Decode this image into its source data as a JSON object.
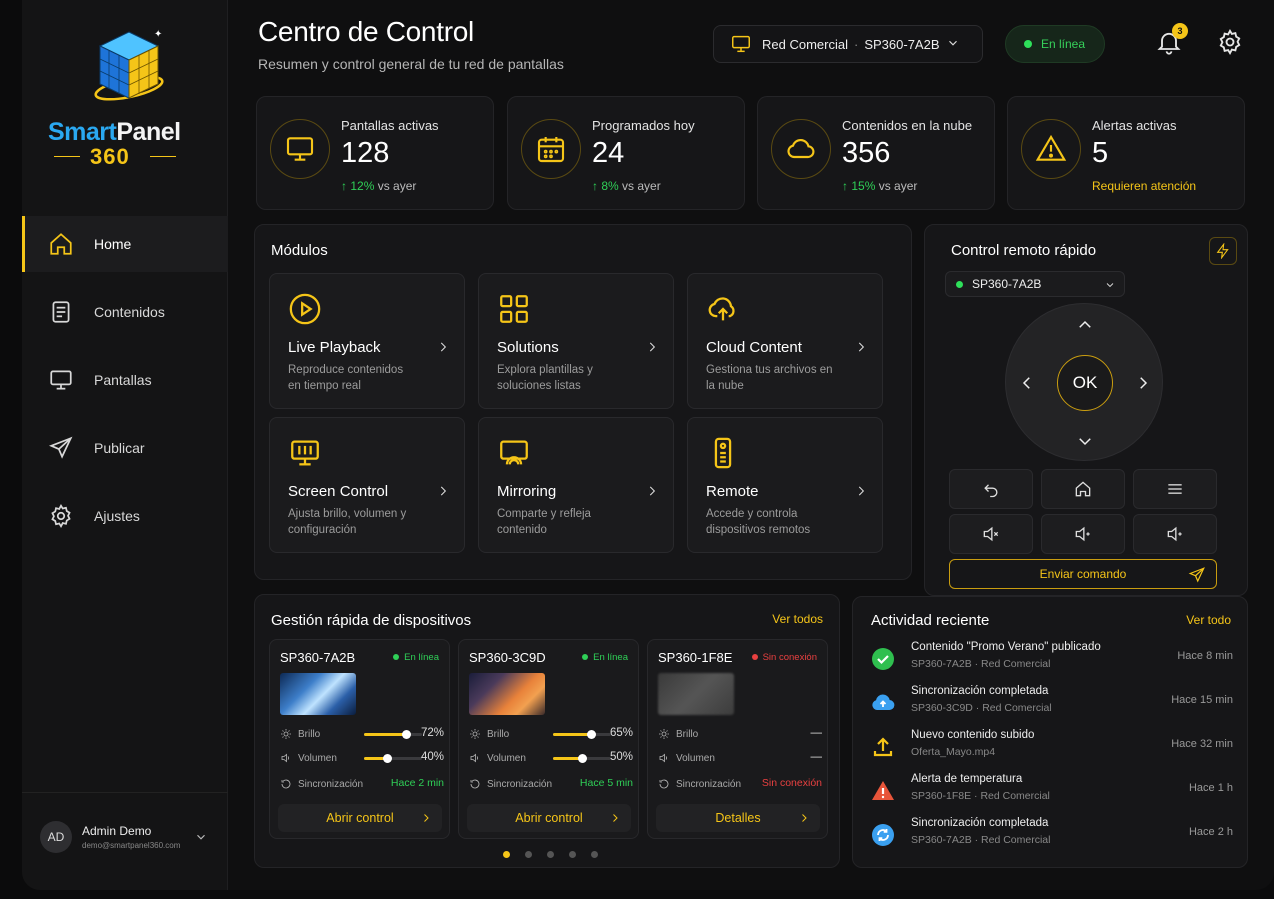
{
  "brand": {
    "name_a": "Smart",
    "name_b": "Panel",
    "name_num": "360"
  },
  "sidebar": {
    "items": [
      {
        "label": "Home",
        "icon": "home-icon",
        "active": true
      },
      {
        "label": "Contenidos",
        "icon": "document-icon"
      },
      {
        "label": "Pantallas",
        "icon": "monitor-icon"
      },
      {
        "label": "Publicar",
        "icon": "send-icon"
      },
      {
        "label": "Ajustes",
        "icon": "gear-icon"
      }
    ],
    "user": {
      "initials": "AD",
      "name": "Admin Demo",
      "email": "demo@smartpanel360.com"
    }
  },
  "header": {
    "title": "Centro de Control",
    "subtitle": "Resumen y control general de tu red de pantallas",
    "network": "Red Comercial",
    "network_sep": "·",
    "device": "SP360-7A2B",
    "status": "En línea",
    "notifications": "3"
  },
  "stats": [
    {
      "label": "Pantallas activas",
      "value": "128",
      "trend": "12%",
      "trend_suffix": "vs ayer",
      "icon": "monitor-icon"
    },
    {
      "label": "Programados hoy",
      "value": "24",
      "trend": "8%",
      "trend_suffix": "vs ayer",
      "icon": "calendar-icon"
    },
    {
      "label": "Contenidos en la nube",
      "value": "356",
      "trend": "15%",
      "trend_suffix": "vs ayer",
      "icon": "cloud-icon"
    },
    {
      "label": "Alertas activas",
      "value": "5",
      "note": "Requieren atención",
      "icon": "warning-icon"
    }
  ],
  "modules": {
    "title": "Módulos",
    "items": [
      {
        "title": "Live Playback",
        "desc": "Reproduce contenidos en tiempo real",
        "icon": "play-icon"
      },
      {
        "title": "Solutions",
        "desc": "Explora plantillas y soluciones listas",
        "icon": "grid-icon"
      },
      {
        "title": "Cloud Content",
        "desc": "Gestiona tus archivos en la nube",
        "icon": "cloud-upload-icon"
      },
      {
        "title": "Screen Control",
        "desc": "Ajusta brillo, volumen y configuración",
        "icon": "screen-settings-icon"
      },
      {
        "title": "Mirroring",
        "desc": "Comparte y refleja contenido",
        "icon": "cast-icon"
      },
      {
        "title": "Remote",
        "desc": "Accede y controla dispositivos remotos",
        "icon": "remote-icon"
      }
    ]
  },
  "remote": {
    "title": "Control remoto rápido",
    "device": "SP360-7A2B",
    "ok": "OK",
    "send": "Enviar comando"
  },
  "devices": {
    "title": "Gestión rápida de dispositivos",
    "view_all": "Ver todos",
    "labels": {
      "brightness": "Brillo",
      "volume": "Volumen",
      "sync": "Sincronización"
    },
    "items": [
      {
        "name": "SP360-7A2B",
        "status": "En línea",
        "online": true,
        "brightness": 72,
        "brightness_text": "72%",
        "volume": 40,
        "volume_text": "40%",
        "sync": "Hace 2 min",
        "action": "Abrir control"
      },
      {
        "name": "SP360-3C9D",
        "status": "En línea",
        "online": true,
        "brightness": 65,
        "brightness_text": "65%",
        "volume": 50,
        "volume_text": "50%",
        "sync": "Hace 5 min",
        "action": "Abrir control"
      },
      {
        "name": "SP360-1F8E",
        "status": "Sin conexión",
        "online": false,
        "brightness_text": "—",
        "volume_text": "—",
        "sync": "Sin conexión",
        "action": "Detalles"
      }
    ]
  },
  "activity": {
    "title": "Actividad reciente",
    "view_all": "Ver todo",
    "items": [
      {
        "title": "Contenido \"Promo Verano\" publicado",
        "sub": "SP360-7A2B · Red Comercial",
        "time": "Hace 8 min",
        "icon": "check-circle-icon",
        "color": "#2fbf4f"
      },
      {
        "title": "Sincronización completada",
        "sub": "SP360-3C9D · Red Comercial",
        "time": "Hace 15 min",
        "icon": "cloud-sync-icon",
        "color": "#3aa0f0"
      },
      {
        "title": "Nuevo contenido subido",
        "sub": "Oferta_Mayo.mp4",
        "time": "Hace 32 min",
        "icon": "upload-icon",
        "color": "#f5c518"
      },
      {
        "title": "Alerta de temperatura",
        "sub": "SP360-1F8E · Red Comercial",
        "time": "Hace 1 h",
        "icon": "warning-icon",
        "color": "#e8553a"
      },
      {
        "title": "Sincronización completada",
        "sub": "SP360-7A2B · Red Comercial",
        "time": "Hace 2 h",
        "icon": "sync-icon",
        "color": "#3aa0f0"
      }
    ]
  },
  "colors": {
    "accent": "#f5c518",
    "online": "#2fcf57",
    "offline": "#e84040"
  }
}
